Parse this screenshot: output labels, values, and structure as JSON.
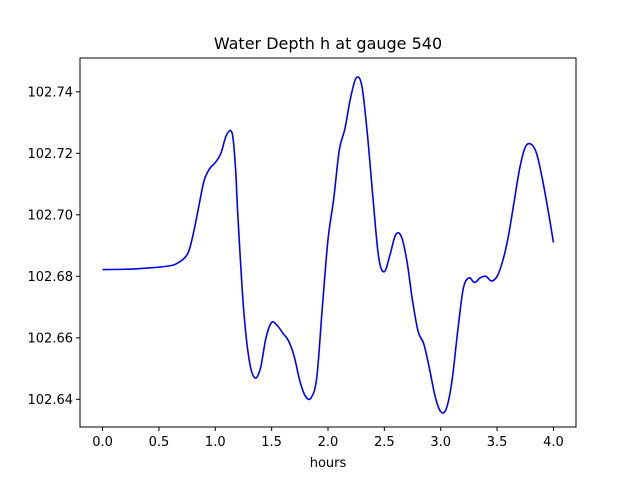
{
  "chart_data": {
    "type": "line",
    "title": "Water Depth h at gauge 540",
    "xlabel": "hours",
    "ylabel": "",
    "xlim": [
      -0.2,
      4.2
    ],
    "ylim": [
      102.631,
      102.751
    ],
    "xticks": [
      "0.0",
      "0.5",
      "1.0",
      "1.5",
      "2.0",
      "2.5",
      "3.0",
      "3.5",
      "4.0"
    ],
    "yticks": [
      "102.64",
      "102.66",
      "102.68",
      "102.70",
      "102.72",
      "102.74"
    ],
    "grid": false,
    "series": [
      {
        "color": "#0000ff",
        "x": [
          0.0,
          0.2,
          0.4,
          0.55,
          0.65,
          0.75,
          0.8,
          0.85,
          0.9,
          0.95,
          1.0,
          1.05,
          1.1,
          1.15,
          1.18,
          1.2,
          1.25,
          1.3,
          1.35,
          1.4,
          1.45,
          1.5,
          1.55,
          1.6,
          1.65,
          1.7,
          1.75,
          1.8,
          1.85,
          1.9,
          1.95,
          2.0,
          2.05,
          2.1,
          2.15,
          2.2,
          2.25,
          2.3,
          2.35,
          2.4,
          2.45,
          2.5,
          2.55,
          2.6,
          2.65,
          2.7,
          2.75,
          2.8,
          2.85,
          2.9,
          2.95,
          3.0,
          3.05,
          3.1,
          3.15,
          3.2,
          3.25,
          3.3,
          3.35,
          3.4,
          3.45,
          3.5,
          3.55,
          3.6,
          3.65,
          3.7,
          3.75,
          3.8,
          3.85,
          3.9,
          3.95,
          4.0
        ],
        "y": [
          102.6822,
          102.6823,
          102.6827,
          102.6832,
          102.684,
          102.687,
          102.693,
          102.702,
          102.711,
          102.715,
          102.717,
          102.72,
          102.726,
          102.7265,
          102.715,
          102.7,
          102.67,
          102.653,
          102.647,
          102.65,
          102.66,
          102.665,
          102.664,
          102.6615,
          102.659,
          102.654,
          102.646,
          102.641,
          102.6405,
          102.647,
          102.67,
          102.692,
          102.705,
          102.721,
          102.728,
          102.738,
          102.7445,
          102.742,
          102.726,
          102.705,
          102.686,
          102.6815,
          102.687,
          102.6935,
          102.693,
          102.685,
          102.672,
          102.662,
          102.658,
          102.65,
          102.641,
          102.636,
          102.637,
          102.646,
          102.662,
          102.676,
          102.6795,
          102.678,
          102.6795,
          102.68,
          102.6785,
          102.68,
          102.685,
          102.693,
          102.704,
          102.715,
          102.722,
          102.723,
          102.72,
          102.712,
          102.702,
          102.691
        ]
      }
    ]
  }
}
